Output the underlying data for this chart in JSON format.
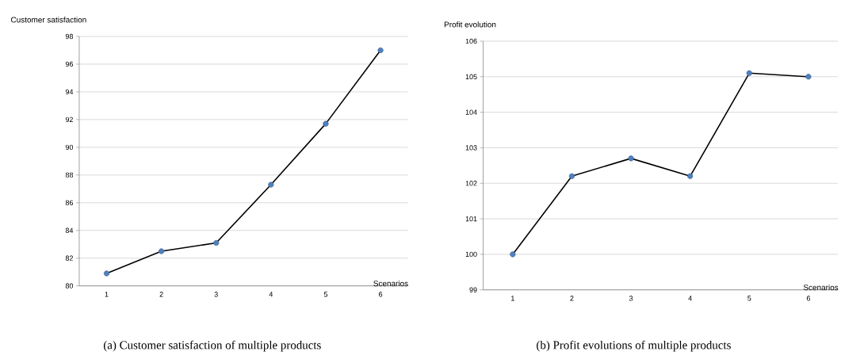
{
  "chart_data": [
    {
      "type": "line",
      "ylabel": "Customer satisfaction",
      "xlabel": "Scenarios",
      "categories": [
        "1",
        "2",
        "3",
        "4",
        "5",
        "6"
      ],
      "series": [
        {
          "color": "#000000",
          "values": [
            80.9,
            82.5,
            83.1,
            87.3,
            91.7,
            97.0
          ]
        }
      ],
      "ylim": [
        80,
        98
      ],
      "yticks": [
        80,
        82,
        84,
        86,
        88,
        90,
        92,
        94,
        96,
        98
      ],
      "grid": "y",
      "marker": "circle",
      "line_style": "solid",
      "annotations": [
        "(a) Customer satisfaction of multiple products"
      ]
    },
    {
      "type": "line",
      "ylabel": "Profit evolution",
      "xlabel": "Scenarios",
      "categories": [
        "1",
        "2",
        "3",
        "4",
        "5",
        "6"
      ],
      "series": [
        {
          "color": "#000000",
          "values": [
            100.0,
            102.2,
            102.7,
            102.2,
            105.1,
            105.0
          ]
        }
      ],
      "ylim": [
        99,
        106
      ],
      "yticks": [
        99,
        100,
        101,
        102,
        103,
        104,
        105,
        106
      ],
      "grid": "y",
      "marker": "circle",
      "line_style": "solid",
      "annotations": [
        "(b) Profit evolutions of multiple products"
      ]
    }
  ]
}
